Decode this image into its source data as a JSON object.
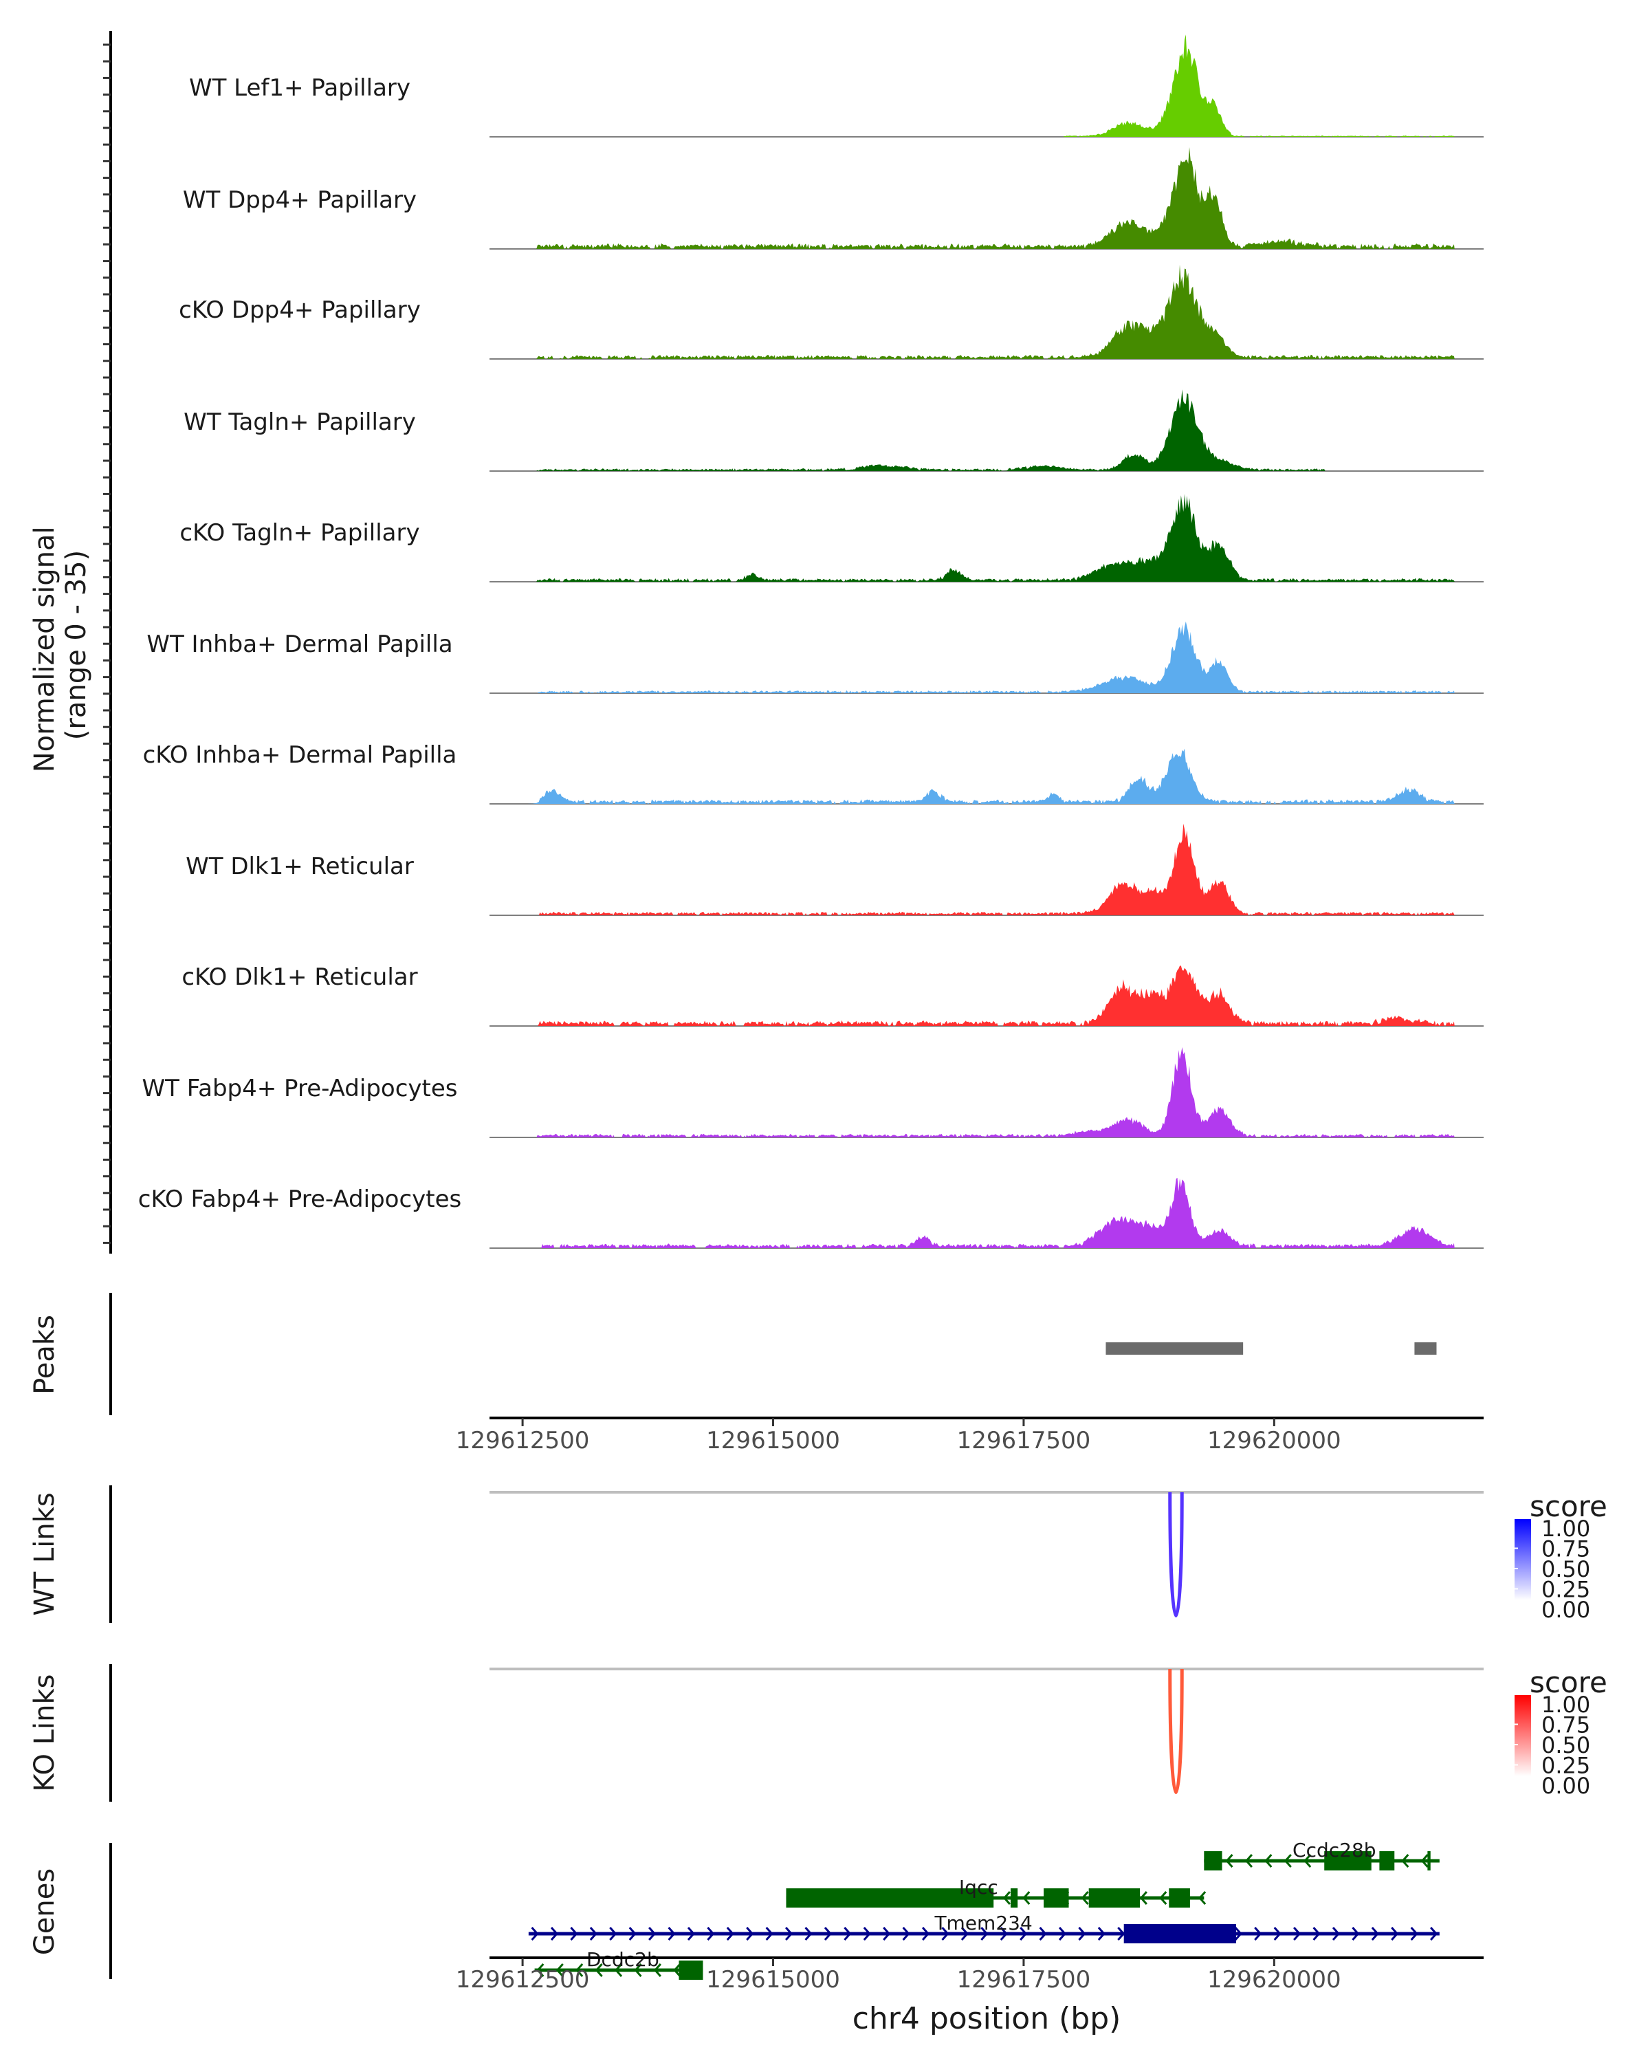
{
  "chart_data": {
    "type": "area",
    "title": "",
    "ylabel": "Normalized signal\n(range 0 - 35)",
    "ylabel_lines": [
      "Normalized signal",
      "(range 0 - 35)"
    ],
    "xlabel": "chr4 position (bp)",
    "ylim": [
      0,
      35
    ],
    "xlim": [
      129612170,
      129622090
    ],
    "xticks": [
      129612500,
      129615000,
      129617500,
      129620000
    ],
    "xtick_labels": [
      "129612500",
      "129615000",
      "129617500",
      "129620000"
    ],
    "tracks": [
      {
        "name": "WT Lef1+ Papillary",
        "color": "#66cd00",
        "peaks": [
          [
            129618550,
            4.5,
            220
          ],
          [
            129618950,
            4.0,
            150
          ],
          [
            129619130,
            29,
            160
          ],
          [
            129619400,
            9,
            110
          ]
        ],
        "noise": 0.3,
        "noise_range": [
          129617900,
          129622000
        ]
      },
      {
        "name": "WT Dpp4+ Papillary",
        "color": "#458b00",
        "peaks": [
          [
            129618550,
            8,
            230
          ],
          [
            129618950,
            6,
            150
          ],
          [
            129619130,
            30,
            150
          ],
          [
            129619400,
            17,
            110
          ],
          [
            129620100,
            1.5,
            300
          ]
        ],
        "noise": 1.2,
        "noise_range": [
          129612650,
          129621800
        ]
      },
      {
        "name": "cKO Dpp4+ Papillary",
        "color": "#458b00",
        "peaks": [
          [
            129618550,
            10,
            230
          ],
          [
            129618900,
            6,
            250
          ],
          [
            129619100,
            24,
            180
          ],
          [
            129619400,
            8,
            150
          ]
        ],
        "noise": 0.9,
        "noise_range": [
          129612650,
          129621800
        ]
      },
      {
        "name": "WT Tagln+ Papillary",
        "color": "#006400",
        "peaks": [
          [
            129618600,
            5,
            150
          ],
          [
            129619100,
            24,
            190
          ],
          [
            129619450,
            3,
            200
          ],
          [
            129616100,
            1.5,
            300
          ],
          [
            129617700,
            1.2,
            250
          ]
        ],
        "noise": 0.6,
        "noise_range": [
          129612650,
          129620500
        ]
      },
      {
        "name": "cKO Tagln+ Papillary",
        "color": "#006400",
        "peaks": [
          [
            129618400,
            5,
            250
          ],
          [
            129618750,
            6,
            200
          ],
          [
            129619100,
            27,
            170
          ],
          [
            129619450,
            12,
            140
          ],
          [
            129616800,
            3.5,
            100
          ],
          [
            129614800,
            2.2,
            80
          ]
        ],
        "noise": 0.8,
        "noise_range": [
          129612650,
          129621800
        ]
      },
      {
        "name": "WT Inhba+ Dermal Papilla",
        "color": "#5cacee",
        "peaks": [
          [
            129618500,
            5,
            300
          ],
          [
            129619100,
            21,
            170
          ],
          [
            129619450,
            10,
            120
          ]
        ],
        "noise": 0.6,
        "noise_range": [
          129612650,
          129621800
        ]
      },
      {
        "name": "cKO Inhba+ Dermal Papilla",
        "color": "#5cacee",
        "peaks": [
          [
            129618650,
            8,
            130
          ],
          [
            129619050,
            17,
            170
          ],
          [
            129612800,
            4,
            100
          ],
          [
            129621350,
            4,
            150
          ],
          [
            129616600,
            3.5,
            100
          ],
          [
            129617800,
            3,
            80
          ]
        ],
        "noise": 1.0,
        "noise_range": [
          129612650,
          129621800
        ]
      },
      {
        "name": "WT Dlk1+ Reticular",
        "color": "#ff3030",
        "peaks": [
          [
            129618500,
            10,
            200
          ],
          [
            129618800,
            6,
            150
          ],
          [
            129619100,
            26,
            150
          ],
          [
            129619450,
            11,
            130
          ]
        ],
        "noise": 0.8,
        "noise_range": [
          129612650,
          129621800
        ]
      },
      {
        "name": "cKO Dlk1+ Reticular",
        "color": "#ff3030",
        "peaks": [
          [
            129618500,
            12,
            200
          ],
          [
            129618800,
            8,
            150
          ],
          [
            129619100,
            18,
            170
          ],
          [
            129619450,
            10,
            150
          ],
          [
            129621250,
            2,
            200
          ]
        ],
        "noise": 1.2,
        "noise_range": [
          129612650,
          129621800
        ]
      },
      {
        "name": "WT Fabp4+ Pre-Adipocytes",
        "color": "#b23aee",
        "peaks": [
          [
            129618550,
            5,
            200
          ],
          [
            129619080,
            28,
            130
          ],
          [
            129619450,
            9,
            150
          ],
          [
            129618200,
            1.5,
            250
          ]
        ],
        "noise": 0.8,
        "noise_range": [
          129612650,
          129621800
        ]
      },
      {
        "name": "cKO Fabp4+ Pre-Adipocytes",
        "color": "#b23aee",
        "peaks": [
          [
            129618450,
            9,
            250
          ],
          [
            129618800,
            5,
            200
          ],
          [
            129619070,
            21,
            130
          ],
          [
            129619450,
            5,
            150
          ],
          [
            129621400,
            6,
            200
          ],
          [
            129616500,
            3,
            100
          ]
        ],
        "noise": 1.0,
        "noise_range": [
          129612650,
          129621800
        ]
      }
    ],
    "peaks_track": {
      "label": "Peaks",
      "color": "#6b6b6b",
      "regions": [
        [
          129618320,
          129619690
        ],
        [
          129621400,
          129621620
        ]
      ]
    },
    "links_tracks": [
      {
        "label": "WT Links",
        "color": "#5533ff",
        "links": [
          {
            "start": 129618960,
            "end": 129619080,
            "score": 0.85
          }
        ],
        "legend": {
          "title": "score",
          "labels": [
            "1.00",
            "0.75",
            "0.50",
            "0.25",
            "0.00"
          ],
          "high": "#0000ff",
          "low": "#ffffff"
        }
      },
      {
        "label": "KO Links",
        "color": "#ff5a3a",
        "links": [
          {
            "start": 129618960,
            "end": 129619080,
            "score": 0.75
          }
        ],
        "legend": {
          "title": "score",
          "labels": [
            "1.00",
            "0.75",
            "0.50",
            "0.25",
            "0.00"
          ],
          "high": "#ff0000",
          "low": "#ffffff"
        }
      }
    ],
    "genes_track": {
      "label": "Genes",
      "genes": [
        {
          "name": "Ccdc28b",
          "strand": "-",
          "color": "#006400",
          "start": 129619300,
          "end": 129621650,
          "row": 0,
          "exons": [
            [
              129619300,
              129619480
            ],
            [
              129620500,
              129620970
            ],
            [
              129621050,
              129621200
            ],
            [
              129621530,
              129621560
            ]
          ]
        },
        {
          "name": "Iqcc",
          "strand": "-",
          "color": "#006400",
          "start": 129615130,
          "end": 129619300,
          "row": 1,
          "exons": [
            [
              129615130,
              129617200
            ],
            [
              129617370,
              129617440
            ],
            [
              129617700,
              129617950
            ],
            [
              129618150,
              129618660
            ],
            [
              129618950,
              129619160
            ]
          ]
        },
        {
          "name": "Tmem234",
          "strand": "+",
          "color": "#00008b",
          "start": 129612560,
          "end": 129621650,
          "row": 2,
          "exons": [
            [
              129618500,
              129619620
            ]
          ]
        },
        {
          "name": "Dcdc2b",
          "strand": "-",
          "color": "#006400",
          "start": 129612620,
          "end": 129614300,
          "row": 3,
          "exons": [
            [
              129614060,
              129614300
            ]
          ]
        }
      ]
    }
  }
}
